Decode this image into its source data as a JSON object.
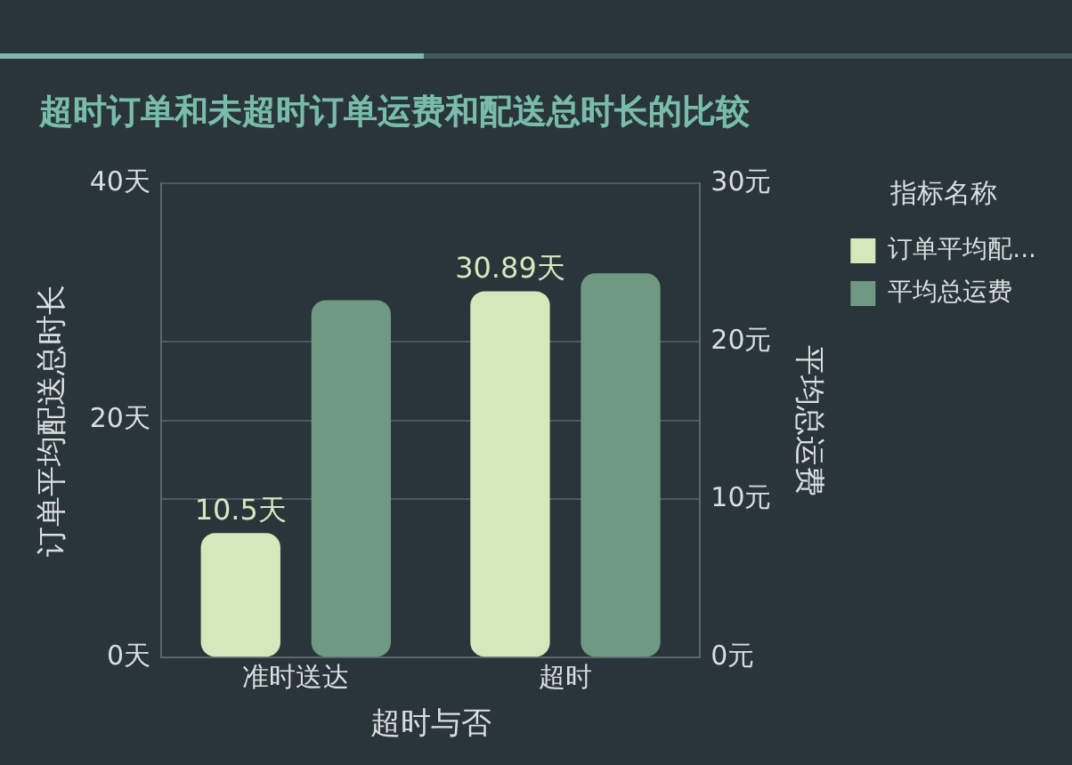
{
  "chart_data": {
    "type": "bar",
    "title": "超时订单和未超时订单运费和配送总时长的比较",
    "xlabel": "超时与否",
    "ylabel": "订单平均配送总时长",
    "y2label": "平均总运费",
    "legend_title": "指标名称",
    "categories": [
      "准时送达",
      "超时"
    ],
    "series": [
      {
        "name": "订单平均配...",
        "color": "#d4e9bb",
        "values": [
          10.5,
          30.89
        ],
        "value_labels": [
          "10.5天",
          "30.89天"
        ]
      },
      {
        "name": "平均总运费",
        "color": "#6f9a82",
        "values": [
          22.6,
          24.3
        ],
        "axis": "y2"
      }
    ],
    "ylim": [
      0,
      40
    ],
    "yticks": [
      {
        "value": 0,
        "label": "0天"
      },
      {
        "value": 20,
        "label": "20天"
      },
      {
        "value": 40,
        "label": "40天"
      }
    ],
    "y2lim": [
      0,
      30
    ],
    "y2ticks": [
      {
        "value": 0,
        "label": "0元"
      },
      {
        "value": 10,
        "label": "10元"
      },
      {
        "value": 20,
        "label": "20元"
      },
      {
        "value": 30,
        "label": "30元"
      }
    ],
    "grid": true,
    "legend": "top right"
  }
}
